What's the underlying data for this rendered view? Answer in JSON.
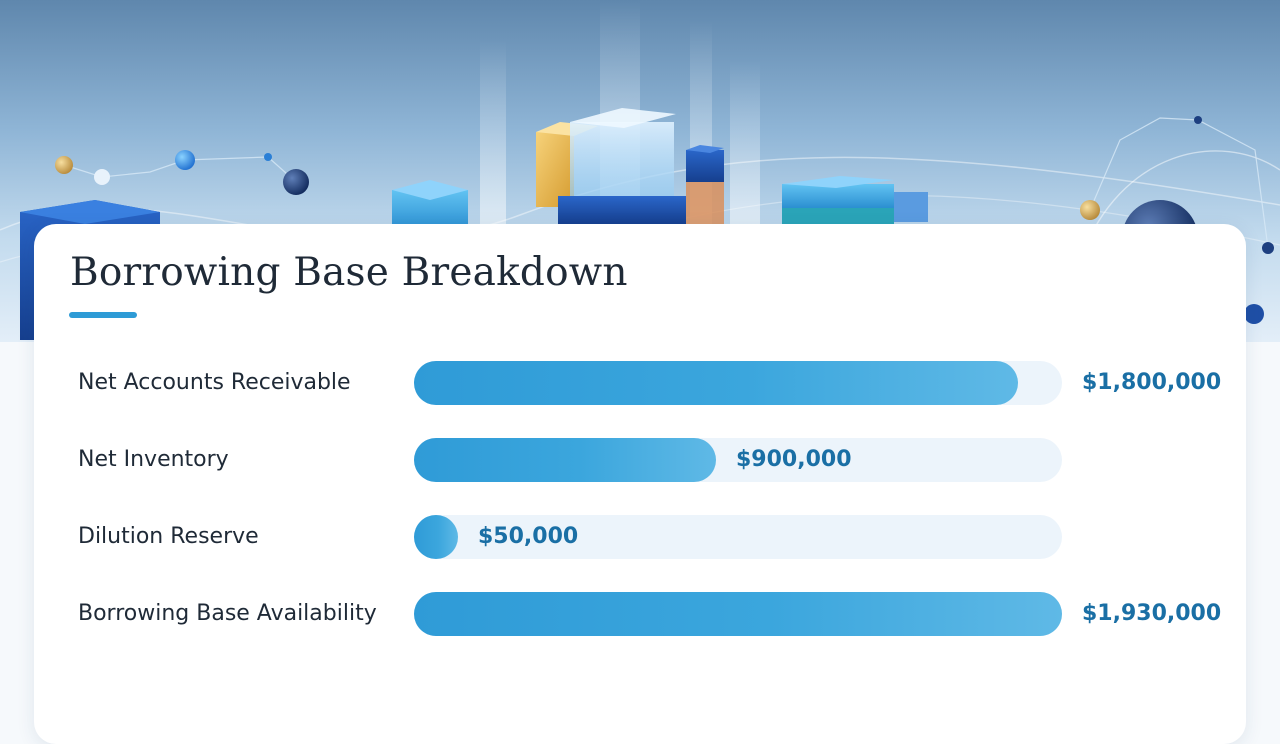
{
  "slide": {
    "title": "Borrowing Base Breakdown",
    "accent_color": "#2e9bd6"
  },
  "chart_data": {
    "type": "bar",
    "orientation": "horizontal",
    "title": "Borrowing Base Breakdown",
    "max_value": 1930000,
    "bars": [
      {
        "label": "Net Accounts Receivable",
        "value": 1800000,
        "value_label": "$1,800,000"
      },
      {
        "label": "Net Inventory",
        "value": 900000,
        "value_label": "$900,000"
      },
      {
        "label": "Dilution Reserve",
        "value": 50000,
        "value_label": "$50,000"
      },
      {
        "label": "Borrowing Base Availability",
        "value": 1930000,
        "value_label": "$1,930,000"
      }
    ],
    "bar_color": "#2f9bd7",
    "track_color": "#ecf4fb",
    "value_color": "#1a6fa5"
  }
}
